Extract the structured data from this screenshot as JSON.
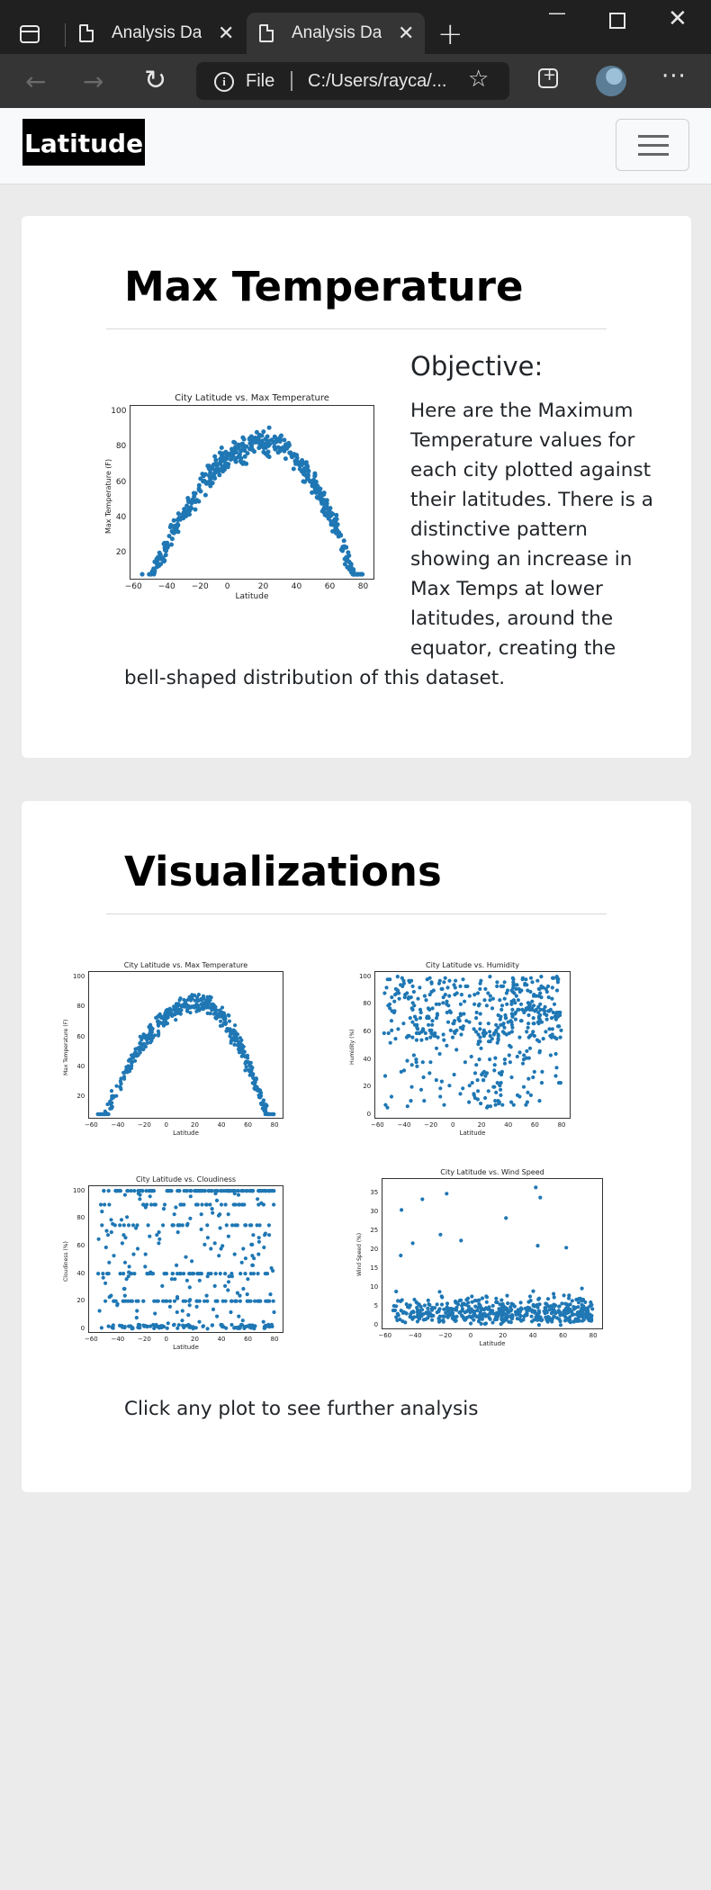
{
  "browser": {
    "tabs": [
      {
        "title": "Analysis Dashboard",
        "active": false
      },
      {
        "title": "Analysis Dashboard",
        "active": true
      }
    ],
    "address": {
      "scheme_label": "File",
      "url": "C:/Users/rayca/..."
    }
  },
  "navbar": {
    "brand": "Latitude"
  },
  "section1": {
    "heading": "Max Temperature",
    "objective_heading": "Objective:",
    "objective_text_wrap": "Here are the Maximum Temperature values for each city plotted against their latitudes. There is a distinctive pattern showing an increase in Max Temps at lower latitudes, around the equator, creating the",
    "objective_text_tail": "bell-shaped distribution of this dataset."
  },
  "section2": {
    "heading": "Visualizations",
    "footer_text": "Click any plot to see further analysis"
  },
  "colors": {
    "point": "#1f77b4",
    "brand_bg": "#000000"
  },
  "chart_data": [
    {
      "id": "temp",
      "type": "scatter",
      "title": "City Latitude vs. Max Temperature",
      "xlabel": "Latitude",
      "ylabel": "Max Temperature (F)",
      "xlim": [
        -62,
        85
      ],
      "ylim": [
        5,
        104
      ],
      "xticks": [
        -60,
        -40,
        -20,
        0,
        20,
        40,
        60,
        80
      ],
      "yticks": [
        20,
        40,
        60,
        80,
        100
      ]
    },
    {
      "id": "humidity",
      "type": "scatter",
      "title": "City Latitude vs. Humidity",
      "xlabel": "Latitude",
      "ylabel": "Humidity (%)",
      "xlim": [
        -62,
        85
      ],
      "ylim": [
        -3,
        104
      ],
      "xticks": [
        -60,
        -40,
        -20,
        0,
        20,
        40,
        60,
        80
      ],
      "yticks": [
        0,
        20,
        40,
        60,
        80,
        100
      ]
    },
    {
      "id": "cloudiness",
      "type": "scatter",
      "title": "City Latitude vs. Cloudiness",
      "xlabel": "Latitude",
      "ylabel": "Cloudiness (%)",
      "xlim": [
        -62,
        85
      ],
      "ylim": [
        -3,
        104
      ],
      "xticks": [
        -60,
        -40,
        -20,
        0,
        20,
        40,
        60,
        80
      ],
      "yticks": [
        0,
        20,
        40,
        60,
        80,
        100
      ]
    },
    {
      "id": "wind",
      "type": "scatter",
      "title": "City Latitude vs. Wind Speed",
      "xlabel": "Latitude",
      "ylabel": "Wind Speed (%)",
      "xlim": [
        -62,
        85
      ],
      "ylim": [
        -1,
        39
      ],
      "xticks": [
        -60,
        -40,
        -20,
        0,
        20,
        40,
        60,
        80
      ],
      "yticks": [
        0,
        5,
        10,
        15,
        20,
        25,
        30,
        35
      ]
    }
  ]
}
